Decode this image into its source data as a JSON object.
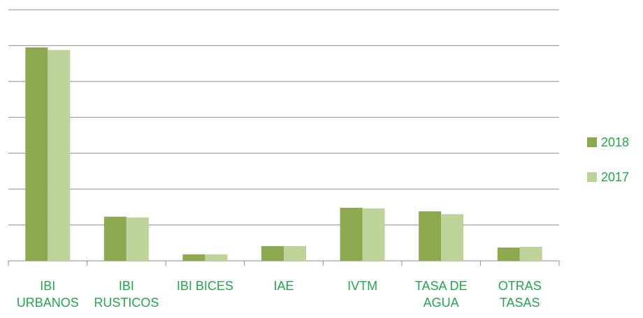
{
  "chart_data": {
    "type": "bar",
    "categories": [
      "IBI URBANOS",
      "IBI RUSTICOS",
      "IBI BICES",
      "IAE",
      "IVTM",
      "TASA DE AGUA",
      "OTRAS TASAS"
    ],
    "series": [
      {
        "name": "2018",
        "color": "#8da94f",
        "values": [
          5.95,
          1.23,
          0.18,
          0.41,
          1.48,
          1.38,
          0.37
        ]
      },
      {
        "name": "2017",
        "color": "#bdd39a",
        "values": [
          5.88,
          1.21,
          0.18,
          0.41,
          1.46,
          1.3,
          0.39
        ]
      }
    ],
    "ylim": [
      0,
      7
    ],
    "yticks": [
      0,
      1,
      2,
      3,
      4,
      5,
      6,
      7
    ],
    "grid": true,
    "legend": "right"
  }
}
